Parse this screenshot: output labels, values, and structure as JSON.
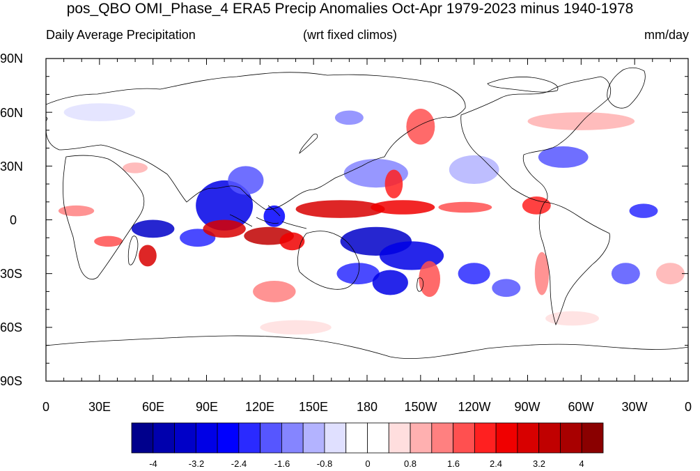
{
  "title": "pos_QBO OMI_Phase_4 ERA5 Precip Anomalies Oct-Apr 1979-2023 minus 1940-1978",
  "subtitle_left": "Daily Average Precipitation",
  "subtitle_center": "(wrt fixed climos)",
  "subtitle_right": "mm/day",
  "lat_labels": [
    "90N",
    "60N",
    "30N",
    "0",
    "30S",
    "60S",
    "90S"
  ],
  "lon_labels": [
    "0",
    "30E",
    "60E",
    "90E",
    "120E",
    "150E",
    "180",
    "150W",
    "120W",
    "90W",
    "60W",
    "30W",
    "0"
  ],
  "colorbar": {
    "labels": [
      "-4",
      "-3.2",
      "-2.4",
      "-1.6",
      "-0.8",
      "0",
      "0.8",
      "1.6",
      "2.4",
      "3.2",
      "4"
    ],
    "colors": [
      "#00008c",
      "#0000ad",
      "#0000c8",
      "#0000e6",
      "#0000ff",
      "#2a2aff",
      "#5656ff",
      "#8585ff",
      "#b3b3ff",
      "#e0e0ff",
      "#ffffff",
      "#ffffff",
      "#ffdede",
      "#ffb0b0",
      "#ff8080",
      "#ff5050",
      "#ff2020",
      "#f00000",
      "#d80000",
      "#c00000",
      "#a80000",
      "#8a0000"
    ]
  },
  "anomaly_blobs": [
    {
      "lon": 100,
      "lat": 8,
      "rx": 16,
      "ry": 14,
      "color": "#0000e6"
    },
    {
      "lon": 128,
      "lat": 2,
      "rx": 6,
      "ry": 6,
      "color": "#0000ff"
    },
    {
      "lon": 60,
      "lat": -5,
      "rx": 12,
      "ry": 5,
      "color": "#0000c8"
    },
    {
      "lon": 85,
      "lat": -10,
      "rx": 10,
      "ry": 5,
      "color": "#2a2aff"
    },
    {
      "lon": 112,
      "lat": 22,
      "rx": 10,
      "ry": 8,
      "color": "#5656ff"
    },
    {
      "lon": 185,
      "lat": -12,
      "rx": 20,
      "ry": 8,
      "color": "#0000c8"
    },
    {
      "lon": 205,
      "lat": -20,
      "rx": 18,
      "ry": 8,
      "color": "#0000e6"
    },
    {
      "lon": 175,
      "lat": -30,
      "rx": 12,
      "ry": 6,
      "color": "#2a2aff"
    },
    {
      "lon": 193,
      "lat": -35,
      "rx": 10,
      "ry": 7,
      "color": "#0000e6"
    },
    {
      "lon": 240,
      "lat": -30,
      "rx": 9,
      "ry": 6,
      "color": "#2a2aff"
    },
    {
      "lon": 258,
      "lat": -38,
      "rx": 8,
      "ry": 5,
      "color": "#5656ff"
    },
    {
      "lon": 185,
      "lat": 26,
      "rx": 18,
      "ry": 8,
      "color": "#8585ff"
    },
    {
      "lon": 240,
      "lat": 28,
      "rx": 14,
      "ry": 8,
      "color": "#b3b3ff"
    },
    {
      "lon": 290,
      "lat": 35,
      "rx": 14,
      "ry": 6,
      "color": "#5656ff"
    },
    {
      "lon": 335,
      "lat": 5,
      "rx": 8,
      "ry": 4,
      "color": "#2a2aff"
    },
    {
      "lon": 325,
      "lat": -30,
      "rx": 8,
      "ry": 6,
      "color": "#5656ff"
    },
    {
      "lon": 170,
      "lat": 57,
      "rx": 8,
      "ry": 4,
      "color": "#8585ff"
    },
    {
      "lon": 30,
      "lat": 60,
      "rx": 20,
      "ry": 5,
      "color": "#e0e0ff"
    },
    {
      "lon": 165,
      "lat": 6,
      "rx": 25,
      "ry": 5,
      "color": "#d80000"
    },
    {
      "lon": 200,
      "lat": 7,
      "rx": 18,
      "ry": 4,
      "color": "#f00000"
    },
    {
      "lon": 235,
      "lat": 7,
      "rx": 15,
      "ry": 3,
      "color": "#ff5050"
    },
    {
      "lon": 100,
      "lat": -5,
      "rx": 12,
      "ry": 5,
      "color": "#d80000"
    },
    {
      "lon": 125,
      "lat": -9,
      "rx": 14,
      "ry": 5,
      "color": "#c00000"
    },
    {
      "lon": 138,
      "lat": -12,
      "rx": 7,
      "ry": 5,
      "color": "#f00000"
    },
    {
      "lon": 57,
      "lat": -20,
      "rx": 5,
      "ry": 6,
      "color": "#d80000"
    },
    {
      "lon": 35,
      "lat": -12,
      "rx": 8,
      "ry": 3,
      "color": "#ff5050"
    },
    {
      "lon": 195,
      "lat": 20,
      "rx": 5,
      "ry": 8,
      "color": "#ff2020"
    },
    {
      "lon": 215,
      "lat": -33,
      "rx": 6,
      "ry": 10,
      "color": "#ff5050"
    },
    {
      "lon": 128,
      "lat": -40,
      "rx": 12,
      "ry": 6,
      "color": "#ff8080"
    },
    {
      "lon": 210,
      "lat": 52,
      "rx": 8,
      "ry": 10,
      "color": "#ff5050"
    },
    {
      "lon": 17,
      "lat": 5,
      "rx": 10,
      "ry": 3,
      "color": "#ff8080"
    },
    {
      "lon": 50,
      "lat": 29,
      "rx": 7,
      "ry": 3,
      "color": "#ffb0b0"
    },
    {
      "lon": 275,
      "lat": 8,
      "rx": 8,
      "ry": 5,
      "color": "#ff2020"
    },
    {
      "lon": 278,
      "lat": -30,
      "rx": 4,
      "ry": 12,
      "color": "#ff8080"
    },
    {
      "lon": 300,
      "lat": 55,
      "rx": 30,
      "ry": 5,
      "color": "#ffb0b0"
    },
    {
      "lon": 350,
      "lat": -30,
      "rx": 8,
      "ry": 6,
      "color": "#ffb0b0"
    },
    {
      "lon": 140,
      "lat": -60,
      "rx": 20,
      "ry": 4,
      "color": "#ffdede"
    },
    {
      "lon": 295,
      "lat": -55,
      "rx": 15,
      "ry": 4,
      "color": "#ffdede"
    }
  ]
}
